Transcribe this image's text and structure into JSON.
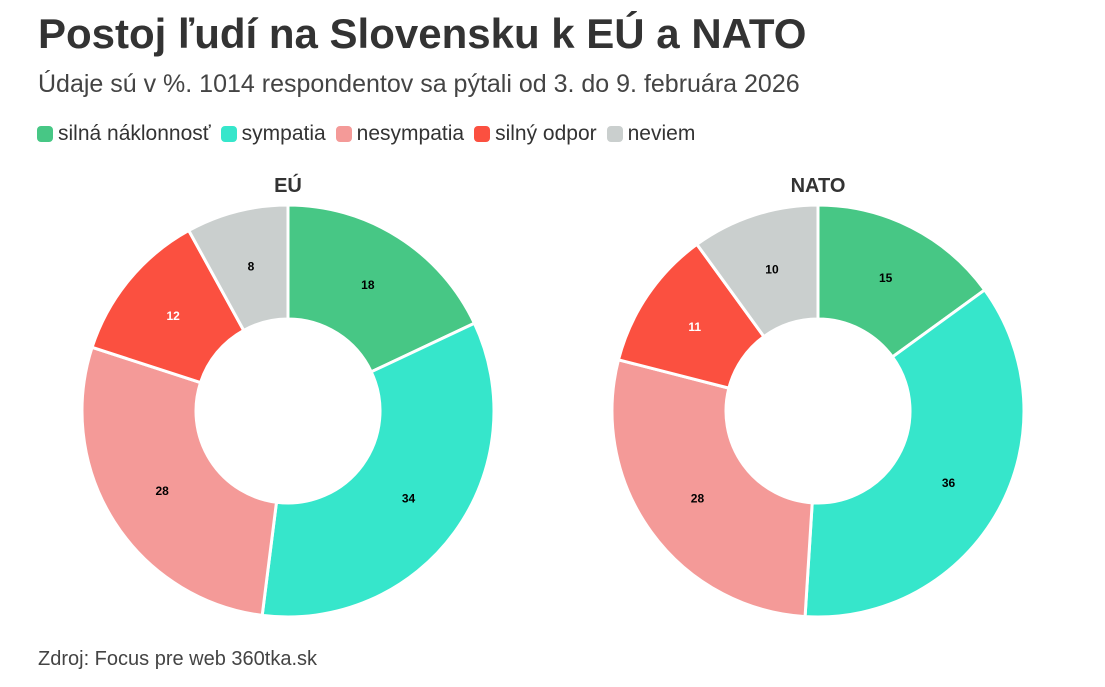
{
  "header": {
    "title": "Postoj ľudí na Slovensku k EÚ a NATO",
    "subtitle": "Údaje sú v %. 1014 respondentov sa pýtali od 3. do 9. februára 2026"
  },
  "legend": [
    {
      "label": "silná náklonnosť",
      "color": "#47c785"
    },
    {
      "label": "sympatia",
      "color": "#36e6cb"
    },
    {
      "label": "nesympatia",
      "color": "#f49a98"
    },
    {
      "label": "silný odpor",
      "color": "#fb5040"
    },
    {
      "label": "neviem",
      "color": "#cacfce"
    }
  ],
  "chart_data": [
    {
      "type": "pie",
      "title": "EÚ",
      "categories": [
        "silná náklonnosť",
        "sympatia",
        "nesympatia",
        "silný odpor",
        "neviem"
      ],
      "values": [
        18,
        34,
        28,
        12,
        8
      ],
      "colors": [
        "#47c785",
        "#36e6cb",
        "#f49a98",
        "#fb5040",
        "#cacfce"
      ],
      "label_colors": [
        "#000000",
        "#000000",
        "#000000",
        "#ffffff",
        "#000000"
      ]
    },
    {
      "type": "pie",
      "title": "NATO",
      "categories": [
        "silná náklonnosť",
        "sympatia",
        "nesympatia",
        "silný odpor",
        "neviem"
      ],
      "values": [
        15,
        36,
        28,
        11,
        10
      ],
      "colors": [
        "#47c785",
        "#36e6cb",
        "#f49a98",
        "#fb5040",
        "#cacfce"
      ],
      "label_colors": [
        "#000000",
        "#000000",
        "#000000",
        "#ffffff",
        "#000000"
      ]
    }
  ],
  "footer": {
    "source": "Zdroj: Focus pre web 360tka.sk"
  }
}
